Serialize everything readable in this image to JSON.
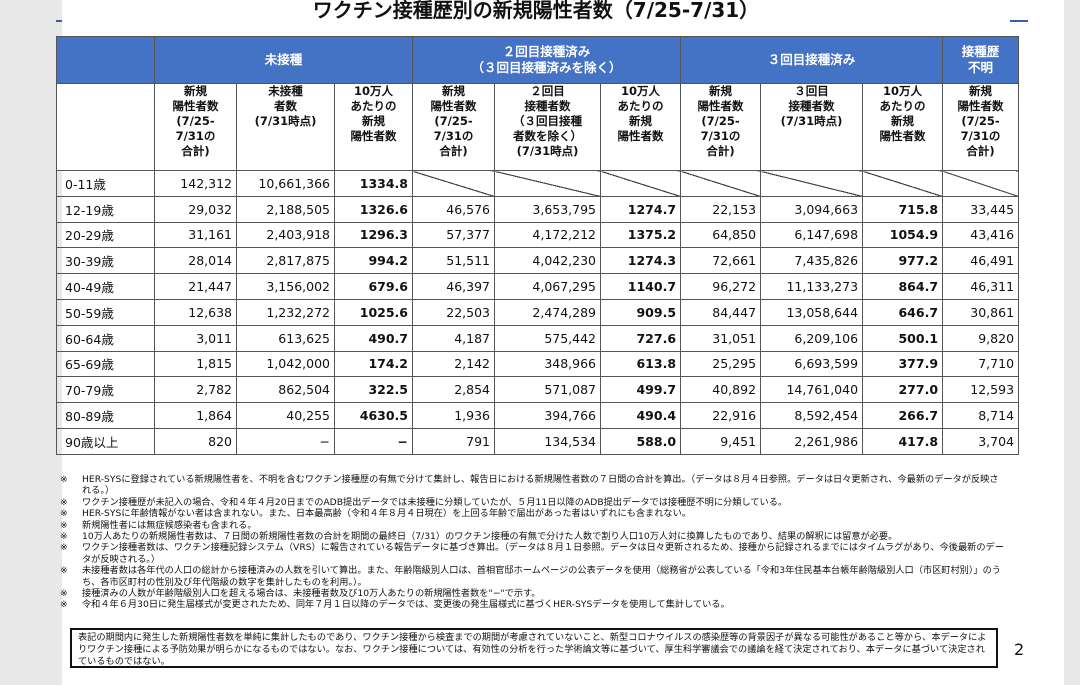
{
  "title": "ワクチン接種歴別の新規陽性者数（7/25-7/31）",
  "group_headers": [
    "未接種",
    "２回目接種済み\n（３回目接種済みを除く）",
    "３回目接種済み",
    "接種歴\n不明"
  ],
  "sub_headers": [
    "新規\n陽性者数\n(7/25-\n7/31の\n合計)",
    "未接種\n者数\n(7/31時点)",
    "10万人\nあたりの\n新規\n陽性者数",
    "新規\n陽性者数\n(7/25-\n7/31の\n合計)",
    "２回目\n接種者数\n（３回目接種\n者数を除く）\n(7/31時点)",
    "10万人\nあたりの\n新規\n陽性者数",
    "新規\n陽性者数\n(7/25-\n7/31の\n合計)",
    "３回目\n接種者数\n(7/31時点)",
    "10万人\nあたりの\n新規\n陽性者数",
    "新規\n陽性者数\n(7/25-\n7/31の\n合計)"
  ],
  "rows": [
    [
      "0-11歳",
      "142,312",
      "10,661,366",
      "1334.8",
      "",
      "",
      "",
      "",
      "",
      "",
      ""
    ],
    [
      "12-19歳",
      "29,032",
      "2,188,505",
      "1326.6",
      "46,576",
      "3,653,795",
      "1274.7",
      "22,153",
      "3,094,663",
      "715.8",
      "33,445"
    ],
    [
      "20-29歳",
      "31,161",
      "2,403,918",
      "1296.3",
      "57,377",
      "4,172,212",
      "1375.2",
      "64,850",
      "6,147,698",
      "1054.9",
      "43,416"
    ],
    [
      "30-39歳",
      "28,014",
      "2,817,875",
      "994.2",
      "51,511",
      "4,042,230",
      "1274.3",
      "72,661",
      "7,435,826",
      "977.2",
      "46,491"
    ],
    [
      "40-49歳",
      "21,447",
      "3,156,002",
      "679.6",
      "46,397",
      "4,067,295",
      "1140.7",
      "96,272",
      "11,133,273",
      "864.7",
      "46,311"
    ],
    [
      "50-59歳",
      "12,638",
      "1,232,272",
      "1025.6",
      "22,503",
      "2,474,289",
      "909.5",
      "84,447",
      "13,058,644",
      "646.7",
      "30,861"
    ],
    [
      "60-64歳",
      "3,011",
      "613,625",
      "490.7",
      "4,187",
      "575,442",
      "727.6",
      "31,051",
      "6,209,106",
      "500.1",
      "9,820"
    ],
    [
      "65-69歳",
      "1,815",
      "1,042,000",
      "174.2",
      "2,142",
      "348,966",
      "613.8",
      "25,295",
      "6,693,599",
      "377.9",
      "7,710"
    ],
    [
      "70-79歳",
      "2,782",
      "862,504",
      "322.5",
      "2,854",
      "571,087",
      "499.7",
      "40,892",
      "14,761,040",
      "277.0",
      "12,593"
    ],
    [
      "80-89歳",
      "1,864",
      "40,255",
      "4630.5",
      "1,936",
      "394,766",
      "490.4",
      "22,916",
      "8,592,454",
      "266.7",
      "8,714"
    ],
    [
      "90歳以上",
      "820",
      "−",
      "−",
      "791",
      "134,534",
      "588.0",
      "9,451",
      "2,261,986",
      "417.8",
      "3,704"
    ]
  ],
  "notes": [
    "HER-SYSに登録されている新規陽性者を、不明を含むワクチン接種歴の有無で分けて集計し、報告日における新規陽性者数の７日間の合計を算出。（データは８月４日参照。データは日々更新され、今最新のデータが反映される。）",
    "ワクチン接種歴が未記入の場合、令和４年４月20日までのADB提出データでは未接種に分類していたが、５月11日以降のADB提出データでは接種歴不明に分類している。",
    "HER-SYSに年齢情報がない者は含まれない。また、日本最高齢（令和４年８月４日現在）を上回る年齢で届出があった者はいずれにも含まれない。",
    "新規陽性者には無症候感染者も含まれる。",
    "10万人あたりの新規陽性者数は、７日間の新規陽性者数の合計を期間の最終日（7/31）のワクチン接種の有無で分けた人数で割り人口10万人対に換算したものであり、結果の解釈には留意が必要。",
    "ワクチン接種者数は、ワクチン接種記録システム（VRS）に報告されている報告データに基づき算出。（データは８月１日参照。データは日々更新されるため、接種から記録されるまでにはタイムラグがあり、今後最新のデータが反映される。）",
    "未接種者数は各年代の人口の総計から接種済みの人数を引いて算出。また、年齢階級別人口は、首相官邸ホームページの公表データを使用（総務省が公表している「令和3年住民基本台帳年齢階級別人口（市区町村別）」のうち、各市区町村の性別及び年代階級の数字を集計したものを利用。）。",
    "接種済みの人数が年齢階級別人口を超える場合は、未接種者数及び10万人あたりの新規陽性者数を\"−\"で示す。",
    "令和４年６月30日に発生届様式が変更されたため、同年７月１日以降のデータでは、変更後の発生届様式に基づくHER-SYSデータを使用して集計している。"
  ],
  "disclaimer": "表記の期間内に発生した新規陽性者数を単純に集計したものであり、ワクチン接種から検査までの期間が考慮されていないこと、新型コロナウイルスの感染歴等の背景因子が異なる可能性があること等から、本データによりワクチン接種による予防効果が明らかになるものではない。なお、ワクチン接種については、有効性の分析を行った学術論文等に基づいて、厚生科学審議会での議論を経て決定されており、本データに基づいて決定されているものではない。",
  "page_number": "2"
}
